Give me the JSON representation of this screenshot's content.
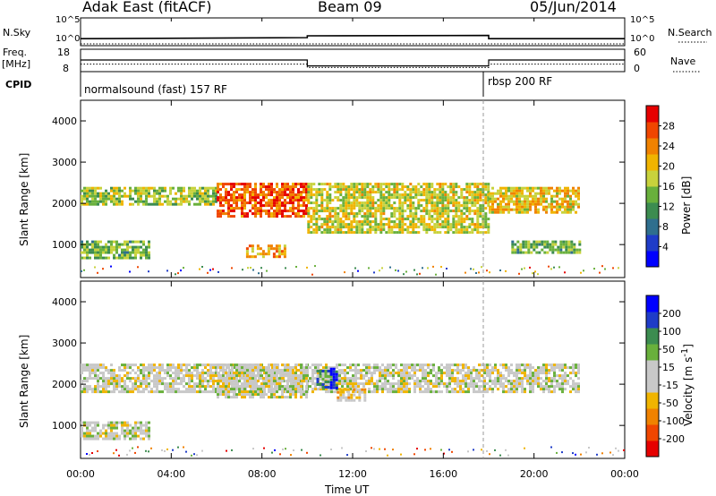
{
  "header": {
    "station": "Adak East (fitACF)",
    "beam": "Beam 09",
    "date": "05/Jun/2014"
  },
  "panels": {
    "nsky_label": "N.Sky",
    "nsearch_label": "N.Search",
    "nsky_ticks": [
      "10^5",
      "10^0"
    ],
    "freq_label": "Freq.",
    "freq_unit": "[MHz]",
    "freq_ticks": [
      "18",
      "8"
    ],
    "nave_label": "Nave",
    "nave_ticks": [
      "60",
      "0"
    ],
    "cpid_label": "CPID",
    "cpid_modes": [
      "normalsound (fast) 157 RF",
      "rbsp 200 RF"
    ]
  },
  "chart_data": [
    {
      "type": "line",
      "name": "noise-and-freq-panels",
      "x_range": [
        0,
        24
      ],
      "series": [
        {
          "name": "N.Sky",
          "x": [
            0,
            10,
            10,
            18,
            18,
            24
          ],
          "y_log10": [
            0.6,
            0.75,
            1.0,
            1.05,
            0.6,
            0.6
          ]
        },
        {
          "name": "Freq.",
          "x": [
            0,
            10,
            10,
            18,
            18,
            24
          ],
          "y_mhz": [
            13,
            13,
            10,
            10,
            13,
            13
          ]
        },
        {
          "name": "Nave",
          "x": [
            0,
            10,
            10,
            18,
            18,
            24
          ],
          "y": [
            20,
            20,
            10,
            10,
            20,
            20
          ]
        }
      ],
      "mode_switch_hours": [
        10,
        18
      ]
    },
    {
      "type": "heatmap",
      "name": "power",
      "xlabel": "Time UT",
      "ylabel": "Slant Range [km]",
      "colorbar_label": "Power [dB]",
      "x_range": [
        0,
        24
      ],
      "y_range": [
        200,
        4500
      ],
      "x_ticks": [
        "00:00",
        "04:00",
        "08:00",
        "12:00",
        "16:00",
        "20:00",
        "00:00"
      ],
      "y_ticks": [
        1000,
        2000,
        3000,
        4000
      ],
      "colorbar_ticks": [
        "28",
        "24",
        "20",
        "16",
        "12",
        "8",
        "4"
      ],
      "colorbar_colors": [
        "#0000ff",
        "#1f3cc8",
        "#2f6f8e",
        "#3c8c50",
        "#69b03c",
        "#c8d23c",
        "#f0b400",
        "#f08200",
        "#f04600",
        "#e60000"
      ],
      "regions": [
        {
          "hours": [
            0,
            6
          ],
          "range_km": [
            1950,
            2400
          ],
          "level_db": 16
        },
        {
          "hours": [
            6,
            10
          ],
          "range_km": [
            1700,
            2500
          ],
          "level_db": 26
        },
        {
          "hours": [
            7.3,
            9
          ],
          "range_km": [
            700,
            1000
          ],
          "level_db": 22
        },
        {
          "hours": [
            0,
            3
          ],
          "range_km": [
            700,
            1100
          ],
          "level_db": 14
        },
        {
          "hours": [
            10,
            18
          ],
          "range_km": [
            1300,
            2500
          ],
          "level_db": 18
        },
        {
          "hours": [
            18,
            22
          ],
          "range_km": [
            1800,
            2400
          ],
          "level_db": 20
        },
        {
          "hours": [
            19,
            22
          ],
          "range_km": [
            800,
            1100
          ],
          "level_db": 14
        }
      ]
    },
    {
      "type": "heatmap",
      "name": "velocity",
      "xlabel": "Time UT",
      "ylabel": "Slant Range [km]",
      "colorbar_label": "Velocity [m s^-1]",
      "x_range": [
        0,
        24
      ],
      "y_range": [
        200,
        4500
      ],
      "x_ticks": [
        "00:00",
        "04:00",
        "08:00",
        "12:00",
        "16:00",
        "20:00",
        "00:00"
      ],
      "y_ticks": [
        1000,
        2000,
        3000,
        4000
      ],
      "colorbar_ticks": [
        "200",
        "100",
        "50",
        "15",
        "-15",
        "-50",
        "-100",
        "-200"
      ],
      "colorbar_colors": [
        "#e60000",
        "#f04600",
        "#f08200",
        "#f0b400",
        "#c8c8c8",
        "#c8c8c8",
        "#69b03c",
        "#3c8c50",
        "#1f3cc8",
        "#0000ff"
      ],
      "regions": [
        {
          "hours": [
            0,
            22
          ],
          "range_km": [
            1800,
            2500
          ],
          "velocity": 0
        },
        {
          "hours": [
            6,
            10
          ],
          "range_km": [
            1700,
            2500
          ],
          "velocity": 0
        },
        {
          "hours": [
            0,
            3
          ],
          "range_km": [
            700,
            1100
          ],
          "velocity": 0
        },
        {
          "hours": [
            10.4,
            11
          ],
          "range_km": [
            1950,
            2350
          ],
          "velocity": 120
        },
        {
          "hours": [
            11,
            11.3
          ],
          "range_km": [
            1900,
            2400
          ],
          "velocity": 200
        },
        {
          "hours": [
            11.3,
            12.5
          ],
          "range_km": [
            1600,
            1900
          ],
          "velocity": -40
        }
      ]
    }
  ]
}
